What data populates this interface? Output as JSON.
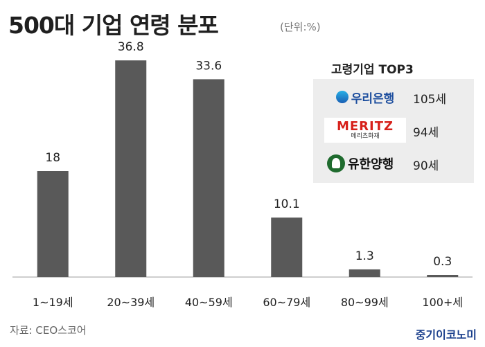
{
  "header": {
    "title": "500대 기업 연령 분포",
    "unit": "(단위:%)"
  },
  "chart_data": {
    "type": "bar",
    "categories": [
      "1~19세",
      "20~39세",
      "40~59세",
      "60~79세",
      "80~99세",
      "100+세"
    ],
    "values": [
      18,
      36.8,
      33.6,
      10.1,
      1.3,
      0.3
    ],
    "value_labels": [
      "18",
      "36.8",
      "33.6",
      "10.1",
      "1.3",
      "0.3"
    ],
    "title": "500대 기업 연령 분포",
    "xlabel": "",
    "ylabel": "",
    "ylim": [
      0,
      40
    ],
    "grid": false,
    "bar_color": "#595959",
    "baseline_color": "#bdbdbd"
  },
  "top3": {
    "title": "고령기업 TOP3",
    "items": [
      {
        "company": "우리은행",
        "age": "105세",
        "logo_icon": "woori-bank-logo"
      },
      {
        "company": "MERITZ",
        "company_sub": "메리츠화재",
        "age": "94세",
        "logo_icon": "meritz-fire-logo"
      },
      {
        "company": "유한양행",
        "age": "90세",
        "logo_icon": "yuhan-logo"
      }
    ]
  },
  "footer": {
    "source": "자료: CEO스코어",
    "brand": "중기이코노미"
  },
  "colors": {
    "brand": "#1a3f8c",
    "meritz_red": "#d7201a",
    "woori_blue": "#1d4e9e",
    "yuhan_green": "#1f6b2e",
    "panel_bg": "#ededed"
  }
}
